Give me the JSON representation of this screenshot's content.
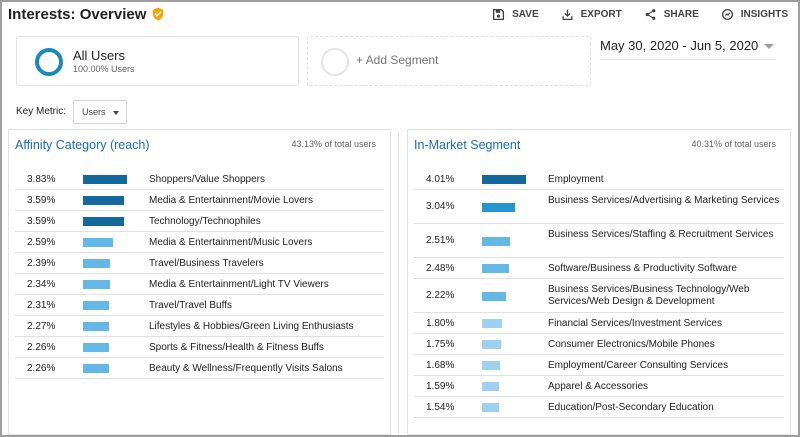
{
  "header": {
    "title": "Interests: Overview",
    "toolbar": {
      "save": "SAVE",
      "export": "EXPORT",
      "share": "SHARE",
      "insights": "INSIGHTS"
    }
  },
  "segments": {
    "primary": {
      "name": "All Users",
      "percent": "100.00% Users"
    },
    "add_label": "+ Add Segment"
  },
  "date_range": "May 30, 2020 - Jun 5, 2020",
  "key_metric": {
    "label": "Key Metric:",
    "value": "Users"
  },
  "colors": {
    "bar_dark": "#13699c",
    "bar_mid": "#2495d1",
    "bar_light": "#64b8e6",
    "bar_pale": "#9dd1ef",
    "title_blue": "#1a6fb5",
    "ring": "#1a89c2"
  },
  "affinity": {
    "title": "Affinity Category (reach)",
    "total": "43.13% of total users",
    "rows": [
      {
        "pct": "3.83%",
        "value": 3.83,
        "label": "Shoppers/Value Shoppers"
      },
      {
        "pct": "3.59%",
        "value": 3.59,
        "label": "Media & Entertainment/Movie Lovers"
      },
      {
        "pct": "3.59%",
        "value": 3.59,
        "label": "Technology/Technophiles"
      },
      {
        "pct": "2.59%",
        "value": 2.59,
        "label": "Media & Entertainment/Music Lovers"
      },
      {
        "pct": "2.39%",
        "value": 2.39,
        "label": "Travel/Business Travelers"
      },
      {
        "pct": "2.34%",
        "value": 2.34,
        "label": "Media & Entertainment/Light TV Viewers"
      },
      {
        "pct": "2.31%",
        "value": 2.31,
        "label": "Travel/Travel Buffs"
      },
      {
        "pct": "2.27%",
        "value": 2.27,
        "label": "Lifestyles & Hobbies/Green Living Enthusiasts"
      },
      {
        "pct": "2.26%",
        "value": 2.26,
        "label": "Sports & Fitness/Health & Fitness Buffs"
      },
      {
        "pct": "2.26%",
        "value": 2.26,
        "label": "Beauty & Wellness/Frequently Visits Salons"
      }
    ]
  },
  "in_market": {
    "title": "In-Market Segment",
    "total": "40.31% of total users",
    "rows": [
      {
        "pct": "4.01%",
        "value": 4.01,
        "label": "Employment"
      },
      {
        "pct": "3.04%",
        "value": 3.04,
        "label": "Business Services/Advertising & Marketing Services"
      },
      {
        "pct": "2.51%",
        "value": 2.51,
        "label": "Business Services/Staffing & Recruitment Services"
      },
      {
        "pct": "2.48%",
        "value": 2.48,
        "label": "Software/Business & Productivity Software"
      },
      {
        "pct": "2.22%",
        "value": 2.22,
        "label": "Business Services/Business Technology/Web Services/Web Design & Development"
      },
      {
        "pct": "1.80%",
        "value": 1.8,
        "label": "Financial Services/Investment Services"
      },
      {
        "pct": "1.75%",
        "value": 1.75,
        "label": "Consumer Electronics/Mobile Phones"
      },
      {
        "pct": "1.68%",
        "value": 1.68,
        "label": "Employment/Career Consulting Services"
      },
      {
        "pct": "1.59%",
        "value": 1.59,
        "label": "Apparel & Accessories"
      },
      {
        "pct": "1.54%",
        "value": 1.54,
        "label": "Education/Post-Secondary Education"
      }
    ]
  }
}
